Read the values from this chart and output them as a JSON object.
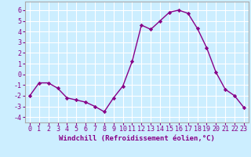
{
  "x": [
    0,
    1,
    2,
    3,
    4,
    5,
    6,
    7,
    8,
    9,
    10,
    11,
    12,
    13,
    14,
    15,
    16,
    17,
    18,
    19,
    20,
    21,
    22,
    23
  ],
  "y": [
    -2.0,
    -0.8,
    -0.8,
    -1.3,
    -2.2,
    -2.4,
    -2.6,
    -3.0,
    -3.5,
    -2.2,
    -1.1,
    1.2,
    4.6,
    4.2,
    5.0,
    5.8,
    6.0,
    5.7,
    4.3,
    2.5,
    0.2,
    -1.4,
    -2.0,
    -3.1
  ],
  "line_color": "#880088",
  "marker": "D",
  "marker_size": 2.2,
  "line_width": 1.0,
  "bg_color": "#cceeff",
  "grid_color": "#ffffff",
  "xlabel": "Windchill (Refroidissement éolien,°C)",
  "xlabel_fontsize": 6.5,
  "tick_fontsize": 6.0,
  "ylim": [
    -4.5,
    6.8
  ],
  "xlim": [
    -0.5,
    23.5
  ],
  "yticks": [
    -4,
    -3,
    -2,
    -1,
    0,
    1,
    2,
    3,
    4,
    5,
    6
  ],
  "xtick_labels": [
    "0",
    "1",
    "2",
    "3",
    "4",
    "5",
    "6",
    "7",
    "8",
    "9",
    "10",
    "11",
    "12",
    "13",
    "14",
    "15",
    "16",
    "17",
    "18",
    "19",
    "20",
    "21",
    "22",
    "23"
  ]
}
